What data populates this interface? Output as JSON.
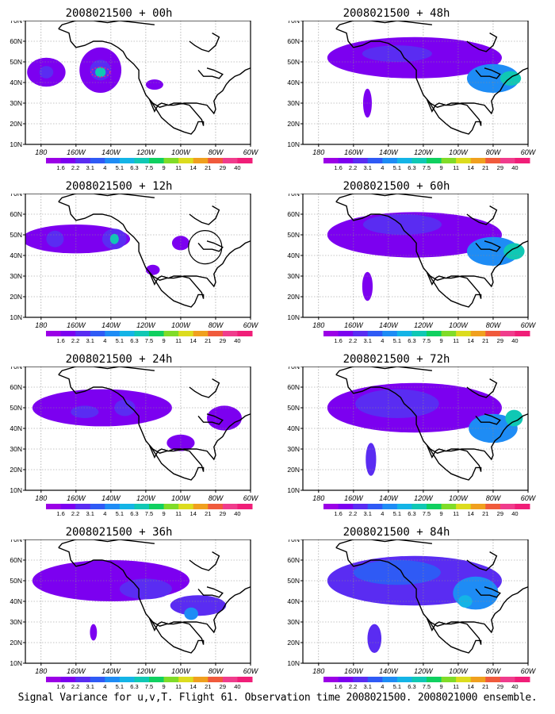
{
  "footer": "Signal Variance for u,v,T. Flight 61. Observation time 2008021500. 2008021000 ensemble.",
  "panels": [
    {
      "title": "2008021500 + 00h",
      "level": 0
    },
    {
      "title": "2008021500 + 48h",
      "level": 4
    },
    {
      "title": "2008021500 + 12h",
      "level": 1
    },
    {
      "title": "2008021500 + 60h",
      "level": 5
    },
    {
      "title": "2008021500 + 24h",
      "level": 2
    },
    {
      "title": "2008021500 + 72h",
      "level": 6
    },
    {
      "title": "2008021500 + 36h",
      "level": 3
    },
    {
      "title": "2008021500 + 84h",
      "level": 7
    }
  ],
  "axes": {
    "lat_labels": [
      "70N",
      "60N",
      "50N",
      "40N",
      "30N",
      "20N",
      "10N"
    ],
    "lon_labels": [
      "180",
      "160W",
      "140W",
      "120W",
      "100W",
      "80W",
      "60W"
    ]
  },
  "colorbar": {
    "labels": [
      "1.6",
      "2.2",
      "3.1",
      "4",
      "5.1",
      "6.3",
      "7.5",
      "9",
      "11",
      "14",
      "21",
      "29",
      "40"
    ],
    "colors": [
      "#9b00e6",
      "#7c00f0",
      "#5a2cf2",
      "#2f5af5",
      "#1e8cf5",
      "#14b4e6",
      "#10c8b4",
      "#10d060",
      "#80dc28",
      "#dcdc1e",
      "#f0a01e",
      "#f05a3c",
      "#f03c8c",
      "#f01e78"
    ]
  },
  "map_colors": {
    "land_outline": "#000000",
    "grid": "#8c8c8c",
    "magenta_marker": "#e61e8c"
  }
}
